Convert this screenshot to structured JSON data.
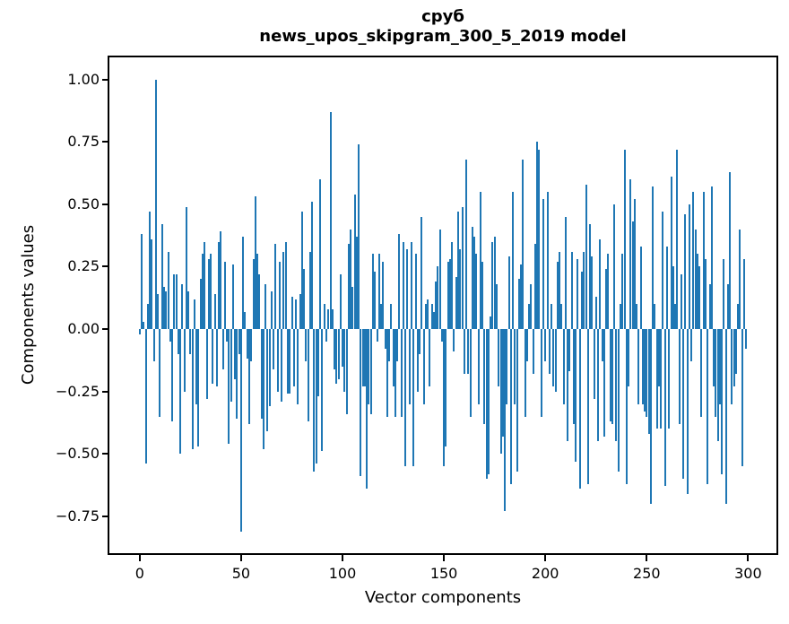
{
  "chart_data": {
    "type": "bar",
    "title": "сруб",
    "subtitle": "news_upos_skipgram_300_5_2019 model",
    "xlabel": "Vector components",
    "ylabel": "Components values",
    "bar_color": "#1f77b4",
    "axis_color": "#000000",
    "text_color": "#000000",
    "background_color": "#ffffff",
    "grid": false,
    "legend": false,
    "n_components": 300,
    "xlim": [
      -14.95,
      313.95
    ],
    "ylim": [
      -0.898,
      1.088
    ],
    "xticks": [
      {
        "v": 0,
        "label": "0"
      },
      {
        "v": 50,
        "label": "50"
      },
      {
        "v": 100,
        "label": "100"
      },
      {
        "v": 150,
        "label": "150"
      },
      {
        "v": 200,
        "label": "200"
      },
      {
        "v": 250,
        "label": "250"
      },
      {
        "v": 300,
        "label": "300"
      }
    ],
    "yticks": [
      {
        "v": 1.0,
        "label": "1.00"
      },
      {
        "v": 0.75,
        "label": "0.75"
      },
      {
        "v": 0.5,
        "label": "0.50"
      },
      {
        "v": 0.25,
        "label": "0.25"
      },
      {
        "v": 0.0,
        "label": "0.00"
      },
      {
        "v": -0.25,
        "label": "−0.25"
      },
      {
        "v": -0.5,
        "label": "−0.50"
      },
      {
        "v": -0.75,
        "label": "−0.75"
      }
    ],
    "values": [
      -0.02,
      0.38,
      0.03,
      -0.54,
      0.1,
      0.47,
      0.36,
      -0.13,
      1.0,
      0.14,
      -0.35,
      0.42,
      0.17,
      0.15,
      0.31,
      -0.05,
      -0.37,
      0.22,
      0.22,
      -0.1,
      -0.5,
      0.18,
      -0.25,
      0.49,
      0.15,
      -0.1,
      -0.48,
      0.12,
      -0.3,
      -0.47,
      0.2,
      0.3,
      0.35,
      -0.28,
      0.28,
      0.3,
      -0.22,
      0.14,
      -0.23,
      0.35,
      0.39,
      -0.16,
      0.27,
      -0.05,
      -0.46,
      -0.29,
      0.26,
      -0.2,
      -0.36,
      -0.1,
      -0.81,
      0.37,
      0.07,
      -0.12,
      -0.38,
      -0.13,
      0.28,
      0.53,
      0.3,
      0.22,
      -0.36,
      -0.48,
      0.18,
      -0.41,
      -0.31,
      0.15,
      -0.16,
      0.34,
      -0.25,
      0.27,
      -0.29,
      0.31,
      0.35,
      -0.26,
      -0.26,
      0.13,
      -0.23,
      0.12,
      -0.3,
      0.14,
      0.47,
      0.24,
      -0.13,
      -0.37,
      0.31,
      0.51,
      -0.57,
      -0.54,
      -0.27,
      0.6,
      -0.49,
      0.1,
      -0.05,
      0.08,
      0.87,
      0.08,
      -0.16,
      -0.22,
      -0.2,
      0.22,
      -0.15,
      -0.25,
      -0.34,
      0.34,
      0.4,
      0.17,
      0.54,
      0.37,
      0.74,
      -0.59,
      -0.23,
      -0.23,
      -0.64,
      -0.3,
      -0.34,
      0.3,
      0.23,
      -0.05,
      0.3,
      0.1,
      0.27,
      -0.08,
      -0.35,
      -0.13,
      0.1,
      -0.23,
      -0.35,
      -0.13,
      0.38,
      -0.35,
      0.35,
      -0.55,
      0.32,
      -0.3,
      0.35,
      -0.55,
      0.3,
      -0.25,
      -0.1,
      0.45,
      -0.3,
      0.1,
      0.12,
      -0.23,
      0.1,
      0.07,
      0.19,
      0.25,
      0.4,
      -0.05,
      -0.55,
      -0.47,
      0.27,
      0.28,
      0.35,
      -0.09,
      0.21,
      0.47,
      0.32,
      0.49,
      -0.18,
      0.68,
      -0.18,
      -0.35,
      0.41,
      0.37,
      0.3,
      -0.3,
      0.55,
      0.27,
      -0.38,
      -0.6,
      -0.58,
      0.05,
      0.35,
      0.37,
      0.18,
      -0.23,
      -0.5,
      -0.43,
      -0.73,
      -0.3,
      0.29,
      -0.62,
      0.55,
      -0.3,
      -0.57,
      0.2,
      0.26,
      0.68,
      -0.35,
      -0.13,
      0.1,
      0.18,
      -0.18,
      0.34,
      0.75,
      0.72,
      -0.35,
      0.52,
      -0.13,
      0.55,
      -0.18,
      0.1,
      -0.23,
      -0.25,
      0.27,
      0.31,
      0.1,
      -0.3,
      0.45,
      -0.45,
      -0.17,
      0.31,
      -0.38,
      -0.53,
      0.28,
      -0.64,
      0.23,
      0.31,
      0.58,
      -0.62,
      0.42,
      0.29,
      -0.28,
      0.13,
      -0.45,
      0.36,
      -0.13,
      -0.43,
      0.24,
      0.3,
      -0.37,
      -0.38,
      0.5,
      -0.45,
      -0.57,
      0.1,
      0.3,
      0.72,
      -0.62,
      -0.23,
      0.6,
      0.43,
      0.52,
      0.1,
      -0.3,
      0.33,
      -0.3,
      -0.33,
      -0.35,
      -0.42,
      -0.7,
      0.57,
      0.1,
      -0.4,
      -0.23,
      -0.4,
      0.47,
      -0.63,
      0.33,
      -0.4,
      0.61,
      0.25,
      0.1,
      0.72,
      -0.38,
      0.22,
      -0.6,
      0.46,
      -0.66,
      0.5,
      -0.13,
      0.55,
      0.4,
      0.3,
      0.25,
      -0.35,
      0.55,
      0.28,
      -0.62,
      0.18,
      0.57,
      -0.23,
      -0.35,
      -0.45,
      -0.3,
      -0.58,
      0.28,
      -0.7,
      0.18,
      0.63,
      -0.3,
      -0.23,
      -0.18,
      0.1,
      0.4,
      -0.55,
      0.28,
      -0.08
    ]
  }
}
